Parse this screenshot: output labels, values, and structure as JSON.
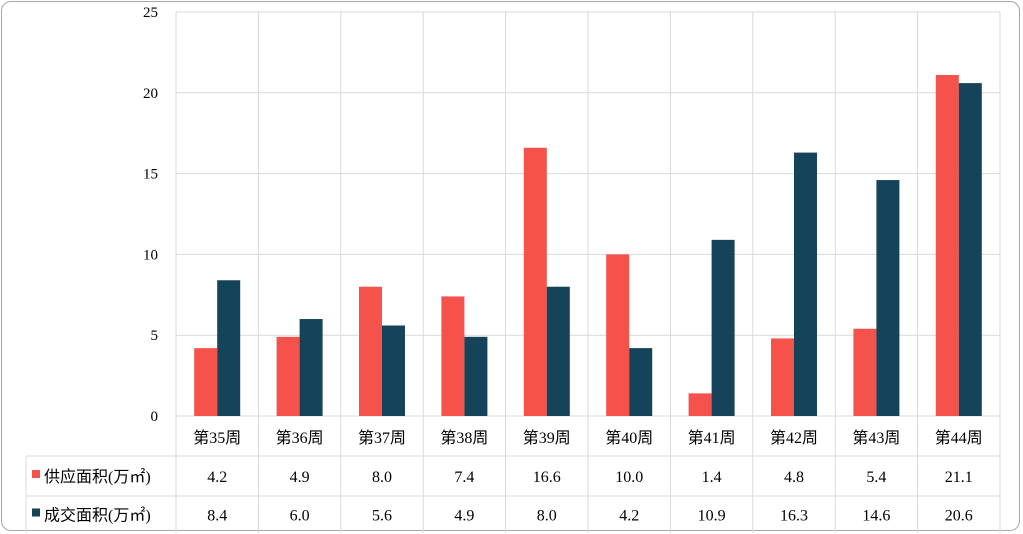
{
  "chart_data": {
    "type": "bar",
    "categories": [
      "第35周",
      "第36周",
      "第37周",
      "第38周",
      "第39周",
      "第40周",
      "第41周",
      "第42周",
      "第43周",
      "第44周"
    ],
    "series": [
      {
        "name": "供应面积(万㎡)",
        "color": "#f4524a",
        "values": [
          4.2,
          4.9,
          8.0,
          7.4,
          16.6,
          10.0,
          1.4,
          4.8,
          5.4,
          21.1
        ]
      },
      {
        "name": "成交面积(万㎡)",
        "color": "#15435a",
        "values": [
          8.4,
          6.0,
          5.6,
          4.9,
          8.0,
          4.2,
          10.9,
          16.3,
          14.6,
          20.6
        ]
      }
    ],
    "table_values": [
      [
        "4.2",
        "4.9",
        "8.0",
        "7.4",
        "16.6",
        "10.0",
        "1.4",
        "4.8",
        "5.4",
        "21.1"
      ],
      [
        "8.4",
        "6.0",
        "5.6",
        "4.9",
        "8.0",
        "4.2",
        "10.9",
        "16.3",
        "14.6",
        "20.6"
      ]
    ],
    "yticks": [
      "0",
      "5",
      "10",
      "15",
      "20",
      "25"
    ],
    "ylim": [
      0,
      25
    ],
    "grid": true,
    "legend": "data-table"
  }
}
